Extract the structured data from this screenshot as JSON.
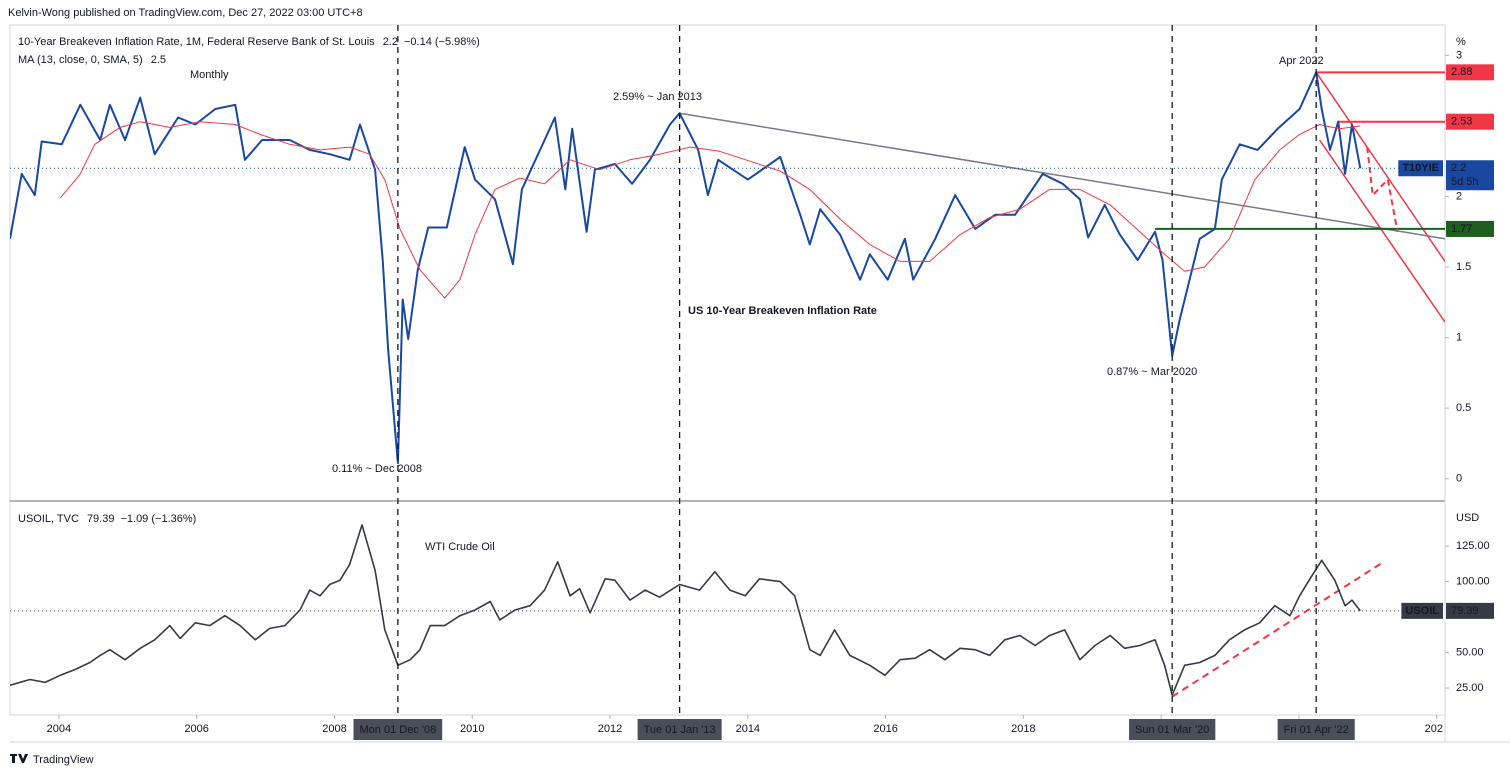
{
  "header": {
    "publisher": "Kelvin-Wong published on TradingView.com, Dec 27, 2022 03:00 UTC+8",
    "brand": "TradingView"
  },
  "chart_data": [
    {
      "type": "line",
      "title": "10-Year Breakeven Inflation Rate, 1M, Federal Reserve Bank of St. Louis",
      "change": "−0.14 (−5.98%)",
      "y_unit": "%",
      "xlim": [
        2003.29,
        2024.12
      ],
      "ylim": [
        -0.13,
        3.18
      ],
      "yticks": [
        0,
        0.5,
        1,
        1.5,
        2,
        3
      ],
      "annotations": [
        "Monthly",
        "2.59% ~ Jan 2013",
        "0.11% ~ Dec 2008",
        "0.87% ~ Mar 2020",
        "Apr 2022",
        "US 10-Year Breakeven Inflation Rate"
      ],
      "series": [
        {
          "name": "T10YIE",
          "color": "#1848a0",
          "width": 2,
          "x": [
            2003.29,
            2003.46,
            2003.65,
            2003.75,
            2004.04,
            2004.31,
            2004.6,
            2004.74,
            2004.96,
            2005.18,
            2005.39,
            2005.73,
            2005.98,
            2006.27,
            2006.56,
            2006.7,
            2006.95,
            2007.35,
            2007.64,
            2007.93,
            2008.22,
            2008.37,
            2008.59,
            2008.7,
            2008.78,
            2008.92,
            2008.99,
            2009.07,
            2009.21,
            2009.36,
            2009.63,
            2009.89,
            2010.04,
            2010.33,
            2010.59,
            2010.72,
            2011.05,
            2011.2,
            2011.35,
            2011.45,
            2011.66,
            2011.78,
            2012.07,
            2012.32,
            2012.58,
            2012.87,
            2013.01,
            2013.28,
            2013.42,
            2013.57,
            2014.0,
            2014.47,
            2014.76,
            2014.9,
            2015.05,
            2015.34,
            2015.63,
            2015.77,
            2016.03,
            2016.28,
            2016.4,
            2016.72,
            2017.01,
            2017.3,
            2017.59,
            2017.88,
            2018.28,
            2018.57,
            2018.82,
            2018.94,
            2019.18,
            2019.4,
            2019.66,
            2019.91,
            2020.02,
            2020.16,
            2020.27,
            2020.56,
            2020.78,
            2020.88,
            2021.14,
            2021.4,
            2021.69,
            2022.01,
            2022.25,
            2022.33,
            2022.45,
            2022.57,
            2022.67,
            2022.77,
            2022.89
          ],
          "values": [
            1.7,
            2.16,
            2.01,
            2.39,
            2.37,
            2.65,
            2.4,
            2.65,
            2.4,
            2.7,
            2.3,
            2.56,
            2.51,
            2.62,
            2.65,
            2.26,
            2.4,
            2.4,
            2.33,
            2.3,
            2.26,
            2.51,
            2.19,
            1.55,
            0.91,
            0.11,
            1.27,
            0.99,
            1.48,
            1.78,
            1.78,
            2.35,
            2.12,
            1.98,
            1.52,
            2.05,
            2.4,
            2.56,
            2.05,
            2.48,
            1.75,
            2.19,
            2.23,
            2.09,
            2.26,
            2.51,
            2.59,
            2.33,
            2.01,
            2.26,
            2.12,
            2.28,
            1.87,
            1.66,
            1.91,
            1.73,
            1.41,
            1.59,
            1.41,
            1.7,
            1.41,
            1.7,
            2.01,
            1.77,
            1.87,
            1.87,
            2.16,
            2.09,
            1.98,
            1.71,
            1.94,
            1.73,
            1.55,
            1.75,
            1.55,
            0.87,
            1.13,
            1.7,
            1.77,
            2.12,
            2.37,
            2.33,
            2.48,
            2.62,
            2.88,
            2.62,
            2.33,
            2.53,
            2.16,
            2.51,
            2.2
          ]
        },
        {
          "name": "MA (13, close, 0, SMA, 5)",
          "color": "#f23645",
          "width": 1,
          "x": [
            2004.02,
            2004.31,
            2004.52,
            2004.89,
            2005.18,
            2005.61,
            2006.05,
            2006.56,
            2006.92,
            2007.35,
            2007.79,
            2008.22,
            2008.51,
            2008.73,
            2008.95,
            2009.24,
            2009.6,
            2009.82,
            2010.04,
            2010.33,
            2010.69,
            2011.05,
            2011.42,
            2011.85,
            2012.29,
            2012.72,
            2013.16,
            2013.59,
            2014.03,
            2014.47,
            2014.9,
            2015.34,
            2015.77,
            2016.21,
            2016.64,
            2017.08,
            2017.51,
            2017.95,
            2018.38,
            2018.82,
            2019.26,
            2019.69,
            2020.05,
            2020.34,
            2020.63,
            2020.99,
            2021.36,
            2021.72,
            2022.01,
            2022.3,
            2022.59,
            2022.89
          ],
          "values": [
            1.99,
            2.16,
            2.37,
            2.49,
            2.53,
            2.49,
            2.53,
            2.51,
            2.44,
            2.37,
            2.33,
            2.35,
            2.3,
            2.12,
            1.77,
            1.48,
            1.28,
            1.41,
            1.73,
            2.05,
            2.13,
            2.09,
            2.26,
            2.19,
            2.26,
            2.3,
            2.35,
            2.32,
            2.25,
            2.18,
            2.05,
            1.84,
            1.66,
            1.54,
            1.54,
            1.73,
            1.85,
            1.91,
            2.05,
            2.05,
            1.94,
            1.75,
            1.59,
            1.47,
            1.5,
            1.7,
            2.12,
            2.33,
            2.44,
            2.51,
            2.48,
            2.5
          ]
        }
      ],
      "levels": [
        {
          "value": 2.88,
          "color": "#f23645",
          "from": 2022.25
        },
        {
          "value": 2.53,
          "color": "#f23645",
          "from": 2022.57
        },
        {
          "value": 1.77,
          "color": "#1e5e1e",
          "from": 2019.91
        }
      ],
      "trendlines": [
        {
          "color": "#787b86",
          "x": [
            2013.01,
            2024.12
          ],
          "values": [
            2.59,
            1.7
          ]
        },
        {
          "color": "#f23645",
          "x": [
            2022.25,
            2024.12
          ],
          "values": [
            2.88,
            1.54
          ]
        },
        {
          "color": "#f23645",
          "x": [
            2022.3,
            2024.12
          ],
          "values": [
            2.4,
            1.11
          ]
        }
      ],
      "projection": {
        "color": "#f23645",
        "x": [
          2022.99,
          2023.07,
          2023.29,
          2023.43
        ],
        "values": [
          2.35,
          2.01,
          2.12,
          1.75
        ]
      },
      "last_label": {
        "symbol": "T10YIE",
        "countdown": "5d 5h",
        "color": "#1848a0"
      }
    },
    {
      "type": "line",
      "title": "USOIL, TVC",
      "change": "−1.09 (−1.36%)",
      "y_unit": "USD",
      "xlim": [
        2003.29,
        2024.12
      ],
      "ylim": [
        6,
        154
      ],
      "yticks": [
        {
          "value": 25,
          "label": "25.00"
        },
        {
          "value": 50,
          "label": "50.00"
        },
        {
          "value": 100,
          "label": "100.00"
        },
        {
          "value": 125,
          "label": "125.00"
        }
      ],
      "xticks": [
        2004,
        2006,
        2008,
        2010,
        2012,
        2014,
        2016,
        2018,
        2020,
        2022,
        {
          "value": 2024,
          "label": "202"
        }
      ],
      "annotations": [
        "WTI Crude Oil"
      ],
      "series": [
        {
          "name": "USOIL",
          "color": "#363a45",
          "width": 1.6,
          "x": [
            2003.29,
            2003.58,
            2003.8,
            2004.02,
            2004.23,
            2004.45,
            2004.6,
            2004.74,
            2004.96,
            2005.18,
            2005.39,
            2005.61,
            2005.76,
            2005.98,
            2006.19,
            2006.41,
            2006.63,
            2006.85,
            2007.06,
            2007.28,
            2007.5,
            2007.64,
            2007.79,
            2007.93,
            2008.08,
            2008.22,
            2008.4,
            2008.59,
            2008.73,
            2008.92,
            2009.1,
            2009.24,
            2009.39,
            2009.6,
            2009.82,
            2010.04,
            2010.26,
            2010.4,
            2010.62,
            2010.84,
            2011.05,
            2011.24,
            2011.42,
            2011.56,
            2011.71,
            2011.93,
            2012.07,
            2012.29,
            2012.51,
            2012.72,
            2013.01,
            2013.3,
            2013.52,
            2013.74,
            2013.96,
            2014.17,
            2014.47,
            2014.68,
            2014.9,
            2015.05,
            2015.26,
            2015.48,
            2015.77,
            2015.99,
            2016.21,
            2016.43,
            2016.64,
            2016.86,
            2017.08,
            2017.3,
            2017.51,
            2017.73,
            2017.95,
            2018.17,
            2018.38,
            2018.6,
            2018.82,
            2019.04,
            2019.26,
            2019.47,
            2019.69,
            2019.91,
            2020.05,
            2020.16,
            2020.34,
            2020.56,
            2020.78,
            2020.99,
            2021.21,
            2021.43,
            2021.65,
            2021.87,
            2022.01,
            2022.16,
            2022.33,
            2022.52,
            2022.67,
            2022.77,
            2022.89
          ],
          "values": [
            27,
            31,
            29,
            34,
            38,
            43,
            48,
            52,
            45,
            53,
            59,
            69,
            60,
            71,
            69,
            76,
            69,
            59,
            67,
            69,
            80,
            94,
            90,
            98,
            101,
            112,
            140,
            108,
            66,
            41,
            45,
            52,
            69,
            69,
            76,
            80,
            86,
            73,
            80,
            83,
            94,
            114,
            90,
            95,
            78,
            102,
            101,
            87,
            94,
            89,
            98,
            94,
            107,
            94,
            90,
            102,
            100,
            90,
            52,
            48,
            66,
            48,
            41,
            34,
            45,
            46,
            52,
            45,
            53,
            52,
            48,
            59,
            62,
            55,
            62,
            66,
            45,
            55,
            62,
            53,
            55,
            59,
            41,
            20,
            41,
            43,
            48,
            59,
            66,
            71,
            83,
            76,
            90,
            102,
            115,
            101,
            83,
            87,
            79.39
          ]
        }
      ],
      "trendlines": [
        {
          "color": "#f23645",
          "x": [
            2020.16,
            2023.2
          ],
          "values": [
            19,
            113
          ],
          "dashed": true
        }
      ],
      "last_label": {
        "symbol": "USOIL",
        "color": "#363a45"
      },
      "markers": [
        {
          "x": 2008.92,
          "label": "Mon 01 Dec '08"
        },
        {
          "x": 2013.01,
          "label": "Tue 01 Jan '13"
        },
        {
          "x": 2020.16,
          "label": "Sun 01 Mar '20"
        },
        {
          "x": 2022.25,
          "label": "Fri 01 Apr '22"
        }
      ]
    }
  ]
}
